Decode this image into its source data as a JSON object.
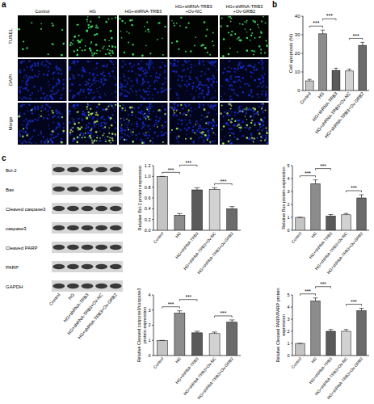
{
  "figure": {
    "panel_labels": [
      "a",
      "b",
      "c"
    ],
    "panel_a": {
      "columns": [
        [
          "Control"
        ],
        [
          "HG"
        ],
        [
          "HG+shRNA-TRB3"
        ],
        [
          "HG+shRNA-TRB3",
          "+Ov-NC"
        ],
        [
          "HG+shRNA-TRB3",
          "+Ov-GRB2"
        ]
      ],
      "rows": [
        "TUNEL",
        "DAPI",
        "Merge"
      ]
    },
    "panel_c": {
      "blot_rows": [
        "Bcl-2",
        "Bax",
        "Cleaved caspase3",
        "caspase3",
        "Cleaved PARP",
        "PARP",
        "GAPDH"
      ],
      "lanes": [
        "Control",
        "HG",
        "HG+shRNA-TRB3",
        "HG+shRNA-TRB3+Ov-NC",
        "HG+shRNA-TRB3+Ov-GRB2"
      ]
    }
  },
  "chart_data": [
    {
      "type": "bar",
      "ylabel": "Cell apoptosis (%)",
      "categories": [
        "Control",
        "HG",
        "HG+shRNA-TRB3",
        "HG+shRNA-TRB3+Ov-NC",
        "HG+shRNA-TRB3+Ov-GRB2"
      ],
      "values": [
        5.2,
        30.5,
        10.8,
        10.5,
        24.3
      ],
      "errors": [
        0.8,
        2.0,
        1.2,
        1.0,
        1.6
      ],
      "colors": [
        "#c4c4c4",
        "#8c8c8c",
        "#5a5a5a",
        "#d2d2d2",
        "#6b6b6b"
      ],
      "ylim": [
        0,
        40
      ],
      "yticks": [
        0,
        10,
        20,
        30,
        40
      ],
      "annotations": [
        {
          "text": "***",
          "between": [
            "Control",
            "HG"
          ]
        },
        {
          "text": "***",
          "between": [
            "HG",
            "HG+shRNA-TRB3"
          ]
        },
        {
          "text": "***",
          "between": [
            "HG+shRNA-TRB3+Ov-NC",
            "HG+shRNA-TRB3+Ov-GRB2"
          ]
        }
      ]
    },
    {
      "type": "bar",
      "ylabel": "Relative Bcl-2 protein expression",
      "categories": [
        "Control",
        "HG",
        "HG+shRNA-TRB3",
        "HG+shRNA-TRB3+Ov-NC",
        "HG+shRNA-TRB3+Ov-GRB2"
      ],
      "values": [
        1.0,
        0.28,
        0.75,
        0.76,
        0.4
      ],
      "errors": [
        0,
        0.03,
        0.04,
        0.03,
        0.04
      ],
      "colors": [
        "#c4c4c4",
        "#8c8c8c",
        "#5a5a5a",
        "#d2d2d2",
        "#6b6b6b"
      ],
      "ylim": [
        0,
        1.2
      ],
      "yticks": [
        {
          "value": 0,
          "label": "0.0"
        },
        0.2,
        0.4,
        0.6,
        0.8,
        {
          "value": 1,
          "label": "1.0"
        },
        1.2
      ],
      "annotations": [
        {
          "text": "***",
          "between": [
            "Control",
            "HG"
          ]
        },
        {
          "text": "***",
          "between": [
            "HG",
            "HG+shRNA-TRB3"
          ]
        },
        {
          "text": "***",
          "between": [
            "HG+shRNA-TRB3+Ov-NC",
            "HG+shRNA-TRB3+Ov-GRB2"
          ]
        }
      ]
    },
    {
      "type": "bar",
      "ylabel": "Relative Bax protein expression",
      "categories": [
        "Control",
        "HG",
        "HG+shRNA-TRB3",
        "HG+shRNA-TRB3+Ov-NC",
        "HG+shRNA-TRB3+Ov-GRB2"
      ],
      "values": [
        1.0,
        3.6,
        1.1,
        1.2,
        2.5
      ],
      "errors": [
        0,
        0.3,
        0.12,
        0.1,
        0.25
      ],
      "colors": [
        "#c4c4c4",
        "#8c8c8c",
        "#5a5a5a",
        "#d2d2d2",
        "#6b6b6b"
      ],
      "ylim": [
        0,
        5
      ],
      "yticks": [
        0,
        1,
        2,
        3,
        4,
        5
      ],
      "annotations": [
        {
          "text": "***",
          "between": [
            "Control",
            "HG"
          ]
        },
        {
          "text": "***",
          "between": [
            "HG",
            "HG+shRNA-TRB3"
          ]
        },
        {
          "text": "***",
          "between": [
            "HG+shRNA-TRB3+Ov-NC",
            "HG+shRNA-TRB3+Ov-GRB2"
          ]
        }
      ]
    },
    {
      "type": "bar",
      "ylabel": "Relative Cleaved caspase3/caspase3 protein expression",
      "categories": [
        "Control",
        "HG",
        "HG+shRNA-TRB3",
        "HG+shRNA-TRB3+Ov-NC",
        "HG+shRNA-TRB3+Ov-GRB2"
      ],
      "values": [
        1.0,
        2.8,
        1.5,
        1.45,
        2.2
      ],
      "errors": [
        0,
        0.15,
        0.1,
        0.1,
        0.15
      ],
      "colors": [
        "#c4c4c4",
        "#8c8c8c",
        "#5a5a5a",
        "#d2d2d2",
        "#6b6b6b"
      ],
      "ylim": [
        0,
        4
      ],
      "yticks": [
        0,
        1,
        2,
        3,
        4
      ],
      "annotations": [
        {
          "text": "***",
          "between": [
            "Control",
            "HG"
          ]
        },
        {
          "text": "***",
          "between": [
            "HG",
            "HG+shRNA-TRB3"
          ]
        },
        {
          "text": "***",
          "between": [
            "HG+shRNA-TRB3+Ov-NC",
            "HG+shRNA-TRB3+Ov-GRB2"
          ]
        }
      ]
    },
    {
      "type": "bar",
      "ylabel": "Relative Cleaved PARP/PARP protein expression",
      "categories": [
        "Control",
        "HG",
        "HG+shRNA-TRB3",
        "HG+shRNA-TRB3+Ov-NC",
        "HG+shRNA-TRB3+Ov-GRB2"
      ],
      "values": [
        1.0,
        4.5,
        2.0,
        2.0,
        3.7
      ],
      "errors": [
        0,
        0.25,
        0.15,
        0.15,
        0.2
      ],
      "colors": [
        "#c4c4c4",
        "#8c8c8c",
        "#5a5a5a",
        "#d2d2d2",
        "#6b6b6b"
      ],
      "ylim": [
        0,
        5
      ],
      "yticks": [
        0,
        1,
        2,
        3,
        4,
        5
      ],
      "annotations": [
        {
          "text": "***",
          "between": [
            "Control",
            "HG"
          ]
        },
        {
          "text": "***",
          "between": [
            "HG",
            "HG+shRNA-TRB3"
          ]
        },
        {
          "text": "***",
          "between": [
            "HG+shRNA-TRB3+Ov-NC",
            "HG+shRNA-TRB3+Ov-GRB2"
          ]
        }
      ]
    }
  ]
}
